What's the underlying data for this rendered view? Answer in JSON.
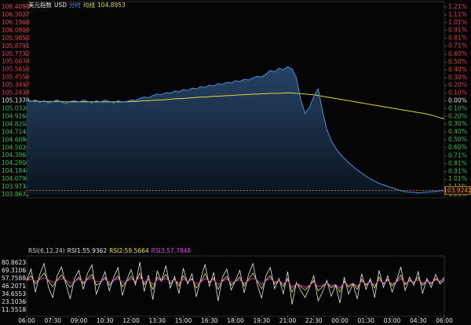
{
  "chart_data": {
    "type": "line",
    "title": "美元指数",
    "symbol": "USD",
    "area": true,
    "categories": [
      "06:00",
      null,
      null,
      null,
      null,
      null,
      "07:30",
      null,
      null,
      null,
      null,
      null,
      "09:00",
      null,
      null,
      null,
      null,
      null,
      "10:30",
      null,
      null,
      null,
      null,
      null,
      "12:00",
      null,
      null,
      null,
      null,
      null,
      "13:30",
      null,
      null,
      null,
      null,
      null,
      "15:00",
      null,
      null,
      null,
      null,
      null,
      "16:30",
      null,
      null,
      null,
      null,
      null,
      "18:00",
      null,
      null,
      null,
      null,
      null,
      "19:30",
      null,
      null,
      null,
      null,
      null,
      "21:00",
      null,
      null,
      null,
      null,
      null,
      "22:30",
      null,
      null,
      null,
      null,
      null,
      "00:00",
      null,
      null,
      null,
      null,
      null,
      "01:30",
      null,
      null,
      null,
      null,
      null,
      "03:00",
      null,
      null,
      null,
      null,
      null,
      "04:30",
      null,
      null,
      null,
      null,
      null,
      "06:00"
    ],
    "series": [
      {
        "name": "分时",
        "color": "#4a8fd8",
        "values": [
          105.14,
          105.13,
          105.15,
          105.12,
          105.14,
          105.11,
          105.13,
          105.15,
          105.12,
          105.1,
          105.13,
          105.14,
          105.12,
          105.15,
          105.13,
          105.11,
          105.14,
          105.12,
          105.15,
          105.13,
          105.11,
          105.14,
          105.12,
          105.13,
          105.15,
          105.14,
          105.17,
          105.19,
          105.18,
          105.21,
          105.23,
          105.22,
          105.25,
          105.24,
          105.27,
          105.26,
          105.29,
          105.28,
          105.31,
          105.3,
          105.33,
          105.32,
          105.35,
          105.34,
          105.37,
          105.36,
          105.39,
          105.38,
          105.41,
          105.4,
          105.43,
          105.42,
          105.45,
          105.47,
          105.46,
          105.5,
          105.55,
          105.53,
          105.58,
          105.56,
          105.6,
          105.57,
          105.45,
          105.15,
          104.97,
          105.05,
          105.2,
          105.3,
          105.0,
          104.75,
          104.6,
          104.5,
          104.42,
          104.36,
          104.3,
          104.25,
          104.2,
          104.16,
          104.12,
          104.08,
          104.05,
          104.02,
          104.0,
          103.98,
          103.96,
          103.94,
          103.92,
          103.91,
          103.9,
          103.9,
          103.89,
          103.9,
          103.9,
          103.91,
          103.91,
          103.92,
          103.9242
        ]
      },
      {
        "name": "均线",
        "color": "#d8d83a",
        "values": [
          105.14,
          105.135,
          105.135,
          105.13,
          105.13,
          105.13,
          105.13,
          105.13,
          105.13,
          105.125,
          105.125,
          105.125,
          105.125,
          105.125,
          105.125,
          105.125,
          105.125,
          105.125,
          105.125,
          105.125,
          105.125,
          105.125,
          105.125,
          105.125,
          105.13,
          105.13,
          105.135,
          105.14,
          105.14,
          105.145,
          105.15,
          105.15,
          105.155,
          105.16,
          105.165,
          105.17,
          105.17,
          105.175,
          105.18,
          105.185,
          105.19,
          105.19,
          105.195,
          105.2,
          105.2,
          105.205,
          105.21,
          105.21,
          105.215,
          105.22,
          105.22,
          105.225,
          105.23,
          105.23,
          105.235,
          105.235,
          105.24,
          105.24,
          105.24,
          105.245,
          105.245,
          105.245,
          105.24,
          105.235,
          105.23,
          105.225,
          105.22,
          105.21,
          105.2,
          105.19,
          105.18,
          105.17,
          105.16,
          105.15,
          105.14,
          105.13,
          105.12,
          105.11,
          105.1,
          105.09,
          105.08,
          105.07,
          105.06,
          105.05,
          105.04,
          105.03,
          105.02,
          105.01,
          105.0,
          104.99,
          104.98,
          104.97,
          104.96,
          104.945,
          104.93,
          104.91,
          104.8953
        ]
      }
    ],
    "ylim": [
      103.8672,
      106.4086
    ],
    "yticks": [
      106.4086,
      106.3027,
      106.1968,
      106.0909,
      {
        "value": 105.985,
        "label": "105.9850"
      },
      105.8791,
      105.7732,
      105.6674,
      105.5615,
      105.4556,
      105.3497,
      105.2438,
      105.1379,
      {
        "value": 105.032,
        "label": "105.0320"
      },
      104.9261,
      104.8202,
      104.7143,
      104.6084,
      104.5025,
      104.3967,
      104.2908,
      104.1848,
      {
        "value": 104.079,
        "label": "104.0790"
      },
      103.9731,
      103.8672
    ],
    "y2lim": [
      -1.21,
      1.21
    ],
    "y2ticks": [
      {
        "value": 1.21,
        "label": "1.21%"
      },
      {
        "value": 1.11,
        "label": "1.11%"
      },
      {
        "value": 1.01,
        "label": "1.01%"
      },
      {
        "value": 0.91,
        "label": "0.91%"
      },
      {
        "value": 0.81,
        "label": "0.81%"
      },
      {
        "value": 0.71,
        "label": "0.71%"
      },
      {
        "value": 0.6,
        "label": "0.60%"
      },
      {
        "value": 0.5,
        "label": "0.50%"
      },
      {
        "value": 0.4,
        "label": "0.40%"
      },
      {
        "value": 0.3,
        "label": "0.30%"
      },
      {
        "value": 0.2,
        "label": "0.20%"
      },
      {
        "value": 0.1,
        "label": "0.10%"
      },
      {
        "value": 0,
        "label": "0.00%"
      },
      {
        "value": -0.1,
        "label": "0.10%"
      },
      {
        "value": -0.2,
        "label": "0.20%"
      },
      {
        "value": -0.3,
        "label": "0.30%"
      },
      {
        "value": -0.4,
        "label": "0.40%"
      },
      {
        "value": -0.5,
        "label": "0.50%"
      },
      {
        "value": -0.6,
        "label": "0.60%"
      },
      {
        "value": -0.71,
        "label": "0.71%"
      },
      {
        "value": -0.81,
        "label": "0.81%"
      },
      {
        "value": -0.91,
        "label": "0.91%"
      },
      {
        "value": -1.01,
        "label": "1.01%"
      },
      {
        "value": -1.11,
        "label": "1.11%"
      },
      {
        "value": -1.21,
        "label": "1.21%"
      }
    ],
    "up_color": "#e0393b",
    "down_color": "#2dbf48",
    "flat_color": "#e6e6e6",
    "last_color": "#e08a2a",
    "rsi": {
      "title": "RSI(6,12,24)",
      "ylim": [
        3.5,
        88.9
      ],
      "yticks": [
        80.8623,
        69.3106,
        57.7588,
        46.2071,
        34.6553,
        23.1036,
        11.5518
      ],
      "series": [
        {
          "name": "RSI1:",
          "color": "#e6e6e6",
          "values": [
            55,
            72,
            38,
            64,
            80,
            45,
            30,
            62,
            75,
            50,
            28,
            58,
            70,
            42,
            66,
            78,
            35,
            52,
            68,
            40,
            60,
            74,
            33,
            56,
            71,
            48,
            82,
            39,
            63,
            27,
            69,
            54,
            77,
            44,
            61,
            36,
            73,
            50,
            65,
            31,
            57,
            79,
            46,
            67,
            25,
            60,
            72,
            41,
            55,
            70,
            37,
            64,
            80,
            49,
            29,
            62,
            74,
            43,
            58,
            35,
            68,
            20,
            52,
            40,
            30,
            45,
            62,
            25,
            38,
            55,
            32,
            48,
            22,
            60,
            35,
            50,
            28,
            65,
            42,
            58,
            30,
            70,
            45,
            62,
            38,
            55,
            75,
            40,
            60,
            48,
            68,
            36,
            58,
            45,
            64,
            50,
            55.9362
          ]
        },
        {
          "name": "RSI2:",
          "color": "#e3e33a",
          "values": [
            55,
            62,
            50,
            58,
            66,
            54,
            46,
            56,
            63,
            54,
            45,
            53,
            60,
            50,
            58,
            64,
            48,
            52,
            60,
            48,
            55,
            62,
            46,
            54,
            61,
            52,
            66,
            49,
            57,
            42,
            60,
            55,
            64,
            50,
            57,
            47,
            62,
            53,
            58,
            44,
            53,
            65,
            52,
            59,
            42,
            55,
            61,
            48,
            54,
            60,
            47,
            57,
            66,
            54,
            43,
            56,
            62,
            50,
            55,
            46,
            58,
            38,
            50,
            46,
            41,
            47,
            55,
            40,
            46,
            53,
            44,
            49,
            38,
            54,
            45,
            51,
            42,
            57,
            48,
            55,
            44,
            60,
            50,
            57,
            47,
            54,
            63,
            49,
            56,
            52,
            60,
            48,
            55,
            50,
            58,
            53,
            59.5664
          ]
        },
        {
          "name": "RSI3:",
          "color": "#e040e0",
          "values": [
            55,
            57,
            54,
            56,
            59,
            56,
            52,
            55,
            58,
            56,
            51,
            54,
            57,
            53,
            56,
            59,
            53,
            54,
            57,
            52,
            55,
            58,
            52,
            54,
            57,
            54,
            60,
            53,
            56,
            49,
            56,
            55,
            58,
            54,
            56,
            51,
            57,
            54,
            56,
            50,
            53,
            58,
            54,
            56,
            49,
            54,
            57,
            52,
            54,
            56,
            51,
            55,
            59,
            55,
            49,
            55,
            58,
            53,
            55,
            50,
            55,
            45,
            50,
            48,
            45,
            48,
            53,
            46,
            48,
            52,
            47,
            49,
            44,
            52,
            48,
            51,
            46,
            54,
            50,
            53,
            48,
            56,
            51,
            55,
            50,
            53,
            58,
            51,
            54,
            53,
            56,
            51,
            54,
            52,
            56,
            54,
            57.7848
          ]
        }
      ]
    }
  }
}
